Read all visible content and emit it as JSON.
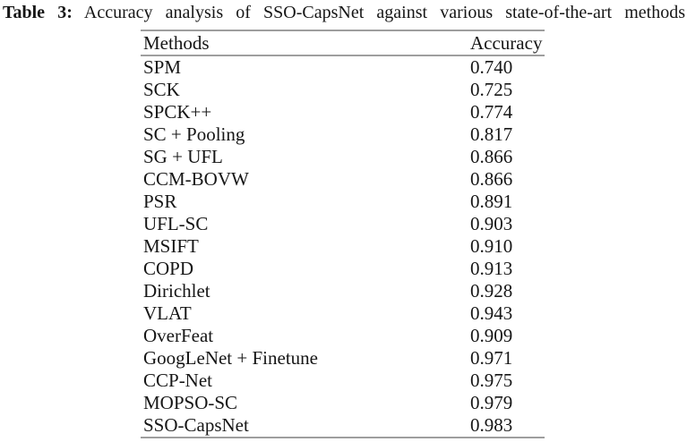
{
  "caption": {
    "label": "Table 3:",
    "text": "Accuracy analysis of SSO-CapsNet against various state-of-the-art methods"
  },
  "table": {
    "headers": {
      "method": "Methods",
      "accuracy": "Accuracy"
    },
    "rows": [
      {
        "method": "SPM",
        "accuracy": "0.740"
      },
      {
        "method": "SCK",
        "accuracy": "0.725"
      },
      {
        "method": "SPCK++",
        "accuracy": "0.774"
      },
      {
        "method": "SC + Pooling",
        "accuracy": "0.817"
      },
      {
        "method": "SG + UFL",
        "accuracy": "0.866"
      },
      {
        "method": "CCM-BOVW",
        "accuracy": "0.866"
      },
      {
        "method": "PSR",
        "accuracy": "0.891"
      },
      {
        "method": "UFL-SC",
        "accuracy": "0.903"
      },
      {
        "method": "MSIFT",
        "accuracy": "0.910"
      },
      {
        "method": "COPD",
        "accuracy": "0.913"
      },
      {
        "method": "Dirichlet",
        "accuracy": "0.928"
      },
      {
        "method": "VLAT",
        "accuracy": "0.943"
      },
      {
        "method": "OverFeat",
        "accuracy": "0.909"
      },
      {
        "method": "GoogLeNet + Finetune",
        "accuracy": "0.971"
      },
      {
        "method": "CCP-Net",
        "accuracy": "0.975"
      },
      {
        "method": "MOPSO-SC",
        "accuracy": "0.979"
      },
      {
        "method": "SSO-CapsNet",
        "accuracy": "0.983"
      }
    ]
  },
  "colors": {
    "background": "#ffffff",
    "text": "#161616",
    "rule": "#9e9e9e"
  },
  "chart_data": {
    "type": "table",
    "title": "Table 3: Accuracy analysis of SSO-CapsNet against various state-of-the-art methods",
    "columns": [
      "Methods",
      "Accuracy"
    ],
    "categories": [
      "SPM",
      "SCK",
      "SPCK++",
      "SC + Pooling",
      "SG + UFL",
      "CCM-BOVW",
      "PSR",
      "UFL-SC",
      "MSIFT",
      "COPD",
      "Dirichlet",
      "VLAT",
      "OverFeat",
      "GoogLeNet + Finetune",
      "CCP-Net",
      "MOPSO-SC",
      "SSO-CapsNet"
    ],
    "values": [
      0.74,
      0.725,
      0.774,
      0.817,
      0.866,
      0.866,
      0.891,
      0.903,
      0.91,
      0.913,
      0.928,
      0.943,
      0.909,
      0.971,
      0.975,
      0.979,
      0.983
    ]
  }
}
